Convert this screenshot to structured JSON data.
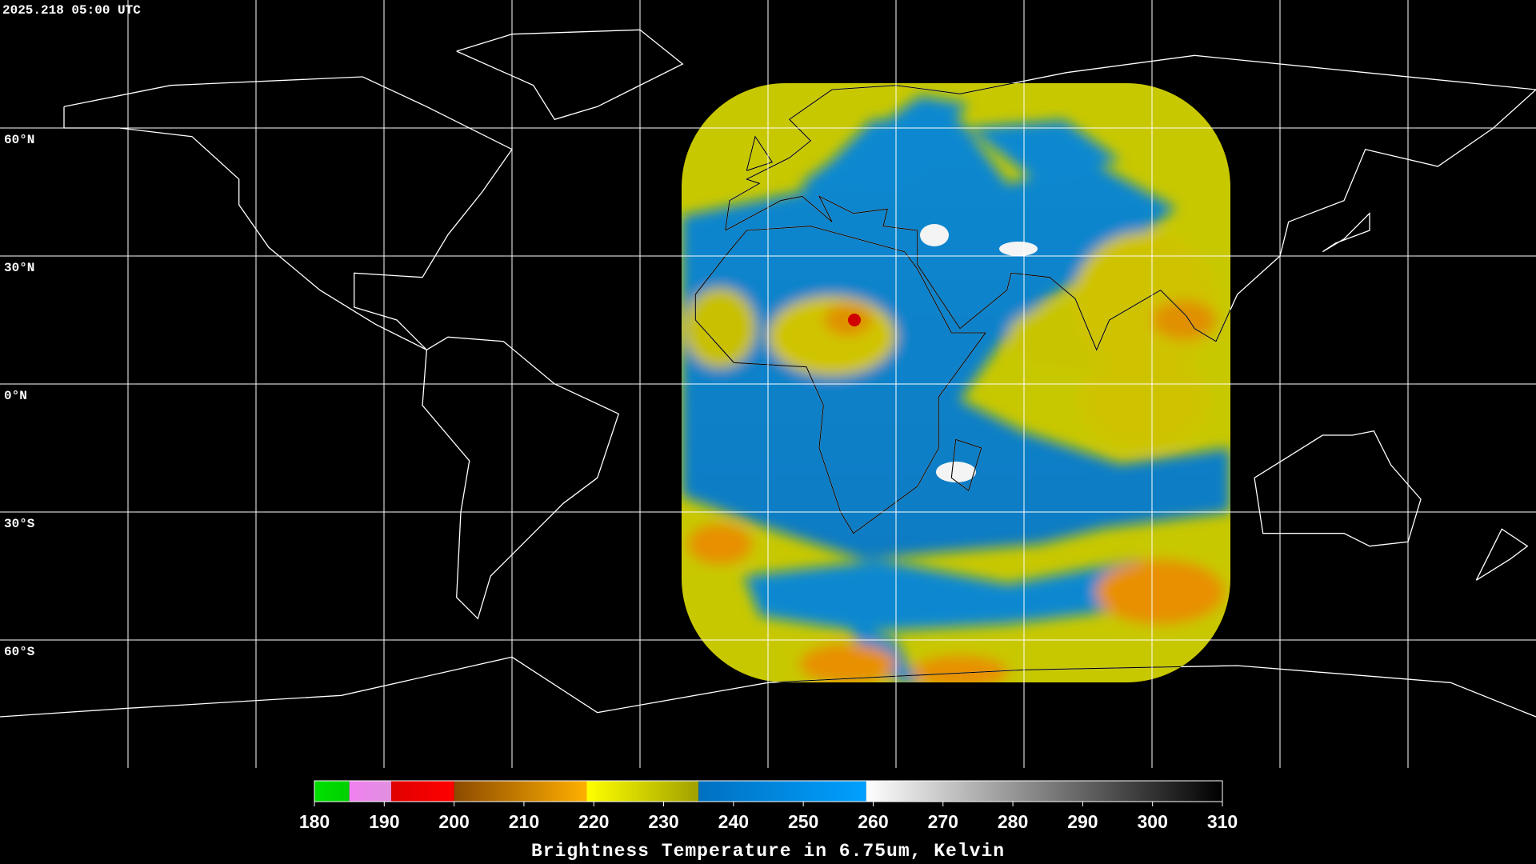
{
  "header": {
    "timestamp": "2025.218 05:00 UTC"
  },
  "map": {
    "lat_labels": [
      "60°N",
      "30°N",
      "0°N",
      "30°S",
      "60°S"
    ]
  },
  "colorbar": {
    "range": [
      180,
      310
    ],
    "ticks": [
      180,
      190,
      200,
      210,
      220,
      230,
      240,
      250,
      260,
      270,
      280,
      290,
      300,
      310
    ],
    "segments": [
      {
        "from": 180,
        "to": 185,
        "colors": [
          "#00e000",
          "#00d000"
        ]
      },
      {
        "from": 185,
        "to": 191,
        "colors": [
          "#f080f0",
          "#e090e0"
        ]
      },
      {
        "from": 191,
        "to": 200,
        "colors": [
          "#e00000",
          "#ff0000"
        ]
      },
      {
        "from": 200,
        "to": 219,
        "colors": [
          "#8c4a00",
          "#ffb000"
        ]
      },
      {
        "from": 219,
        "to": 235,
        "colors": [
          "#ffff00",
          "#a0a000"
        ]
      },
      {
        "from": 235,
        "to": 259,
        "colors": [
          "#0070c0",
          "#00a0ff"
        ]
      },
      {
        "from": 259,
        "to": 310,
        "colors": [
          "#ffffff",
          "#000000"
        ]
      }
    ],
    "label": "Brightness Temperature in 6.75um, Kelvin"
  }
}
